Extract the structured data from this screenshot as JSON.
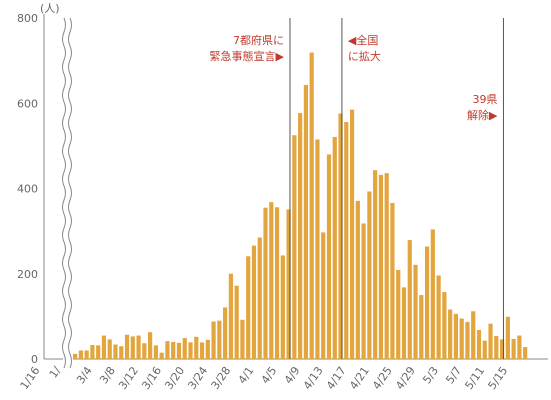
{
  "chart_data": {
    "type": "bar",
    "unit_label": "(人)",
    "y_ticks": [
      0,
      200,
      400,
      600,
      800
    ],
    "ylim": [
      0,
      800
    ],
    "grid": false,
    "x_tick_labels": [
      "1/16",
      "1/",
      "3/4",
      "3/8",
      "3/12",
      "3/16",
      "3/20",
      "3/24",
      "3/28",
      "4/1",
      "4/5",
      "4/9",
      "4/13",
      "4/17",
      "4/21",
      "4/25",
      "4/29",
      "5/3",
      "5/7",
      "5/11",
      "5/15"
    ],
    "first_date": "2020-03-01",
    "values": [
      12,
      20,
      20,
      33,
      32,
      55,
      46,
      34,
      30,
      57,
      53,
      55,
      37,
      63,
      32,
      15,
      42,
      40,
      38,
      49,
      39,
      52,
      39,
      45,
      88,
      90,
      121,
      200,
      172,
      92,
      241,
      266,
      285,
      355,
      368,
      356,
      243,
      351,
      525,
      577,
      643,
      719,
      515,
      297,
      480,
      521,
      576,
      556,
      585,
      371,
      318,
      393,
      443,
      432,
      436,
      366,
      209,
      168,
      279,
      221,
      150,
      264,
      304,
      196,
      157,
      116,
      106,
      95,
      87,
      112,
      68,
      43,
      83,
      54,
      46,
      99,
      47,
      55,
      28
    ],
    "annotations": [
      {
        "date": "2020-04-07",
        "line1": "7都府県に",
        "line2": "緊急事態宣言▶"
      },
      {
        "date": "2020-04-16",
        "line1": "◀全国",
        "line2": "に拡大"
      },
      {
        "date": "2020-05-14",
        "line1": "39県",
        "line2": "解除▶"
      }
    ],
    "colors": {
      "bar": "#e3a53e",
      "annotation": "#c0392b",
      "axis": "#888888",
      "marker_line": "#555555"
    }
  }
}
